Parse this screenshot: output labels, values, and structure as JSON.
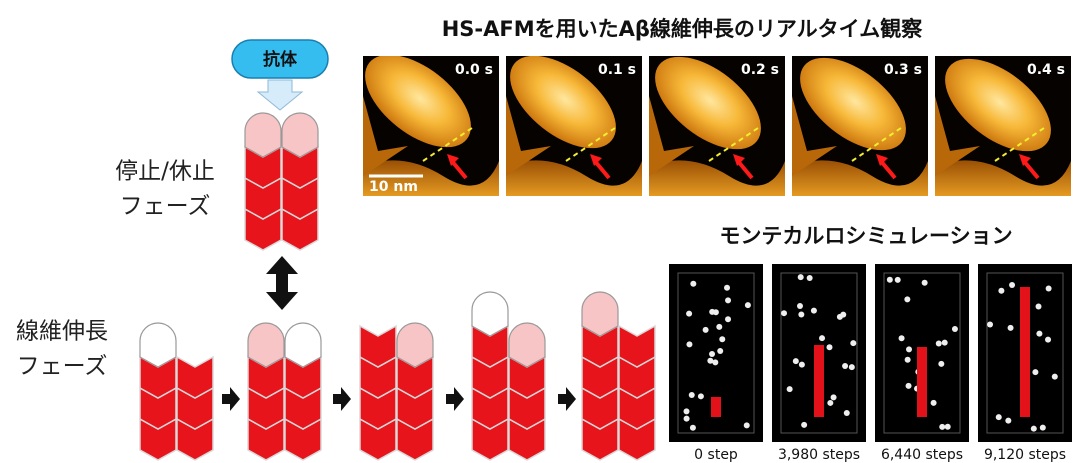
{
  "title": "HS-AFMを用いたAβ線維伸長のリアルタイム観察",
  "afm": {
    "frames": [
      "0.0 s",
      "0.1 s",
      "0.2 s",
      "0.3 s",
      "0.4 s"
    ],
    "scale_bar": "10 nm"
  },
  "simulation": {
    "title": "モンテカルロシミュレーション",
    "steps": [
      "0 step",
      "3,980 steps",
      "6,440 steps",
      "9,120 steps"
    ]
  },
  "antibody": "抗体",
  "phases": {
    "pause": [
      "停止/休止",
      "フェーズ"
    ],
    "elongation": [
      "線維伸長",
      "フェーズ"
    ]
  }
}
